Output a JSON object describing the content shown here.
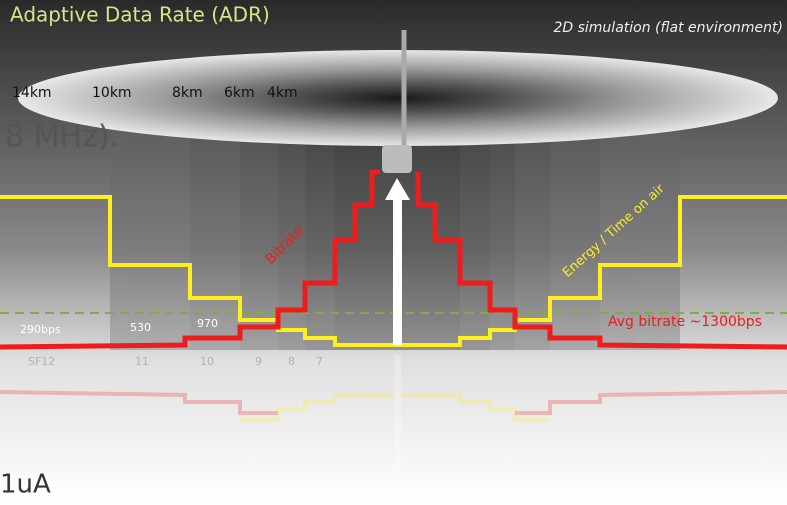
{
  "title": "Adaptive Data Rate (ADR)",
  "subtitle": "2D simulation (flat environment)",
  "distances": [
    "14km",
    "10km",
    "8km",
    "6km",
    "4km"
  ],
  "background_text": "8 MHz).",
  "bitrate_label": "Bitrate",
  "energy_label": "Energy / Time on air",
  "avg_label": "Avg bitrate ~1300bps",
  "bitrates": [
    "290bps",
    "530",
    "970"
  ],
  "spreading_factors": [
    "SF12",
    "11",
    "10",
    "9",
    "8",
    "7"
  ],
  "footer_text": "1uA"
}
